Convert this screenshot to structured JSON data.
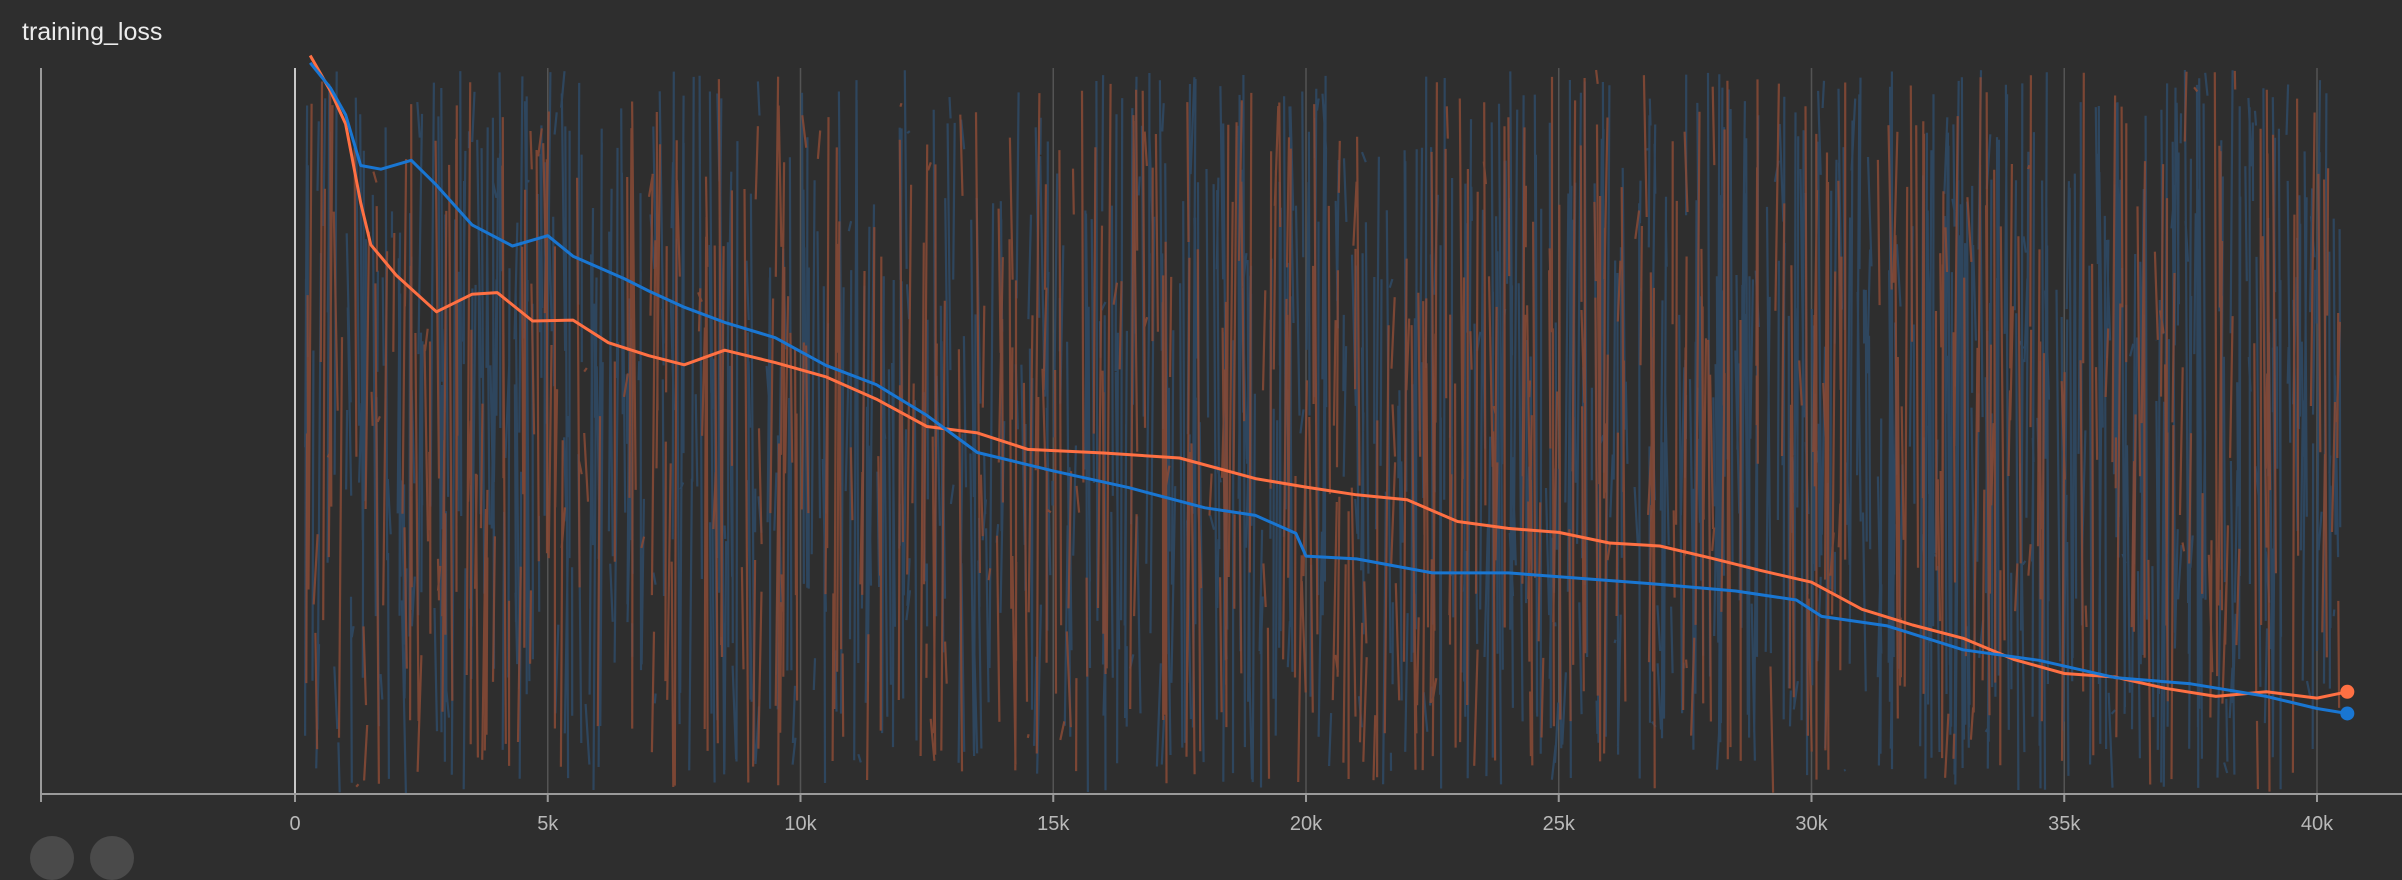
{
  "card": {
    "title": "training_loss"
  },
  "colors": {
    "background": "#2e2e2e",
    "axis": "#9a9a9a",
    "grid": "#545454",
    "series_orange": "#ff7043",
    "series_blue": "#1976d2",
    "raw_orange": "#8a4a35",
    "raw_blue": "#2e4a66"
  },
  "chart_data": {
    "type": "line",
    "title": "training_loss",
    "xlabel": "",
    "ylabel": "",
    "xlim": [
      0,
      41500
    ],
    "ylim": [
      0,
      1
    ],
    "x_ticks": [
      0,
      5000,
      10000,
      15000,
      20000,
      25000,
      30000,
      35000,
      40000
    ],
    "x_tick_labels": [
      "0",
      "5k",
      "10k",
      "15k",
      "20k",
      "25k",
      "30k",
      "35k",
      "40k"
    ],
    "y_ticks_shown": false,
    "grid": "vertical",
    "series": [
      {
        "color": "#ff7043",
        "smoothed": [
          [
            300,
            1.02
          ],
          [
            700,
            0.97
          ],
          [
            1000,
            0.93
          ],
          [
            1300,
            0.82
          ],
          [
            1500,
            0.76
          ],
          [
            2000,
            0.72
          ],
          [
            2800,
            0.67
          ],
          [
            3500,
            0.69
          ],
          [
            4000,
            0.69
          ],
          [
            4700,
            0.65
          ],
          [
            5500,
            0.66
          ],
          [
            6200,
            0.62
          ],
          [
            7000,
            0.6
          ],
          [
            7700,
            0.59
          ],
          [
            8500,
            0.61
          ],
          [
            9500,
            0.59
          ],
          [
            10500,
            0.58
          ],
          [
            11500,
            0.55
          ],
          [
            12500,
            0.51
          ],
          [
            13500,
            0.5
          ],
          [
            14500,
            0.48
          ],
          [
            16000,
            0.47
          ],
          [
            17500,
            0.46
          ],
          [
            19000,
            0.44
          ],
          [
            20000,
            0.42
          ],
          [
            21000,
            0.41
          ],
          [
            22000,
            0.4
          ],
          [
            23000,
            0.38
          ],
          [
            24000,
            0.36
          ],
          [
            25000,
            0.36
          ],
          [
            26000,
            0.35
          ],
          [
            27000,
            0.34
          ],
          [
            28000,
            0.33
          ],
          [
            29000,
            0.31
          ],
          [
            30000,
            0.29
          ],
          [
            31000,
            0.25
          ],
          [
            32000,
            0.23
          ],
          [
            33000,
            0.21
          ],
          [
            34000,
            0.18
          ],
          [
            35000,
            0.17
          ],
          [
            36000,
            0.16
          ],
          [
            37000,
            0.14
          ],
          [
            38000,
            0.13
          ],
          [
            39000,
            0.135
          ],
          [
            40000,
            0.135
          ],
          [
            40600,
            0.14
          ]
        ]
      },
      {
        "color": "#1976d2",
        "smoothed": [
          [
            300,
            1.01
          ],
          [
            700,
            0.98
          ],
          [
            1000,
            0.94
          ],
          [
            1300,
            0.87
          ],
          [
            1700,
            0.86
          ],
          [
            2300,
            0.87
          ],
          [
            2800,
            0.84
          ],
          [
            3500,
            0.79
          ],
          [
            4300,
            0.76
          ],
          [
            5000,
            0.77
          ],
          [
            5500,
            0.74
          ],
          [
            6500,
            0.71
          ],
          [
            7000,
            0.7
          ],
          [
            7700,
            0.67
          ],
          [
            8500,
            0.65
          ],
          [
            9500,
            0.63
          ],
          [
            10500,
            0.59
          ],
          [
            11500,
            0.56
          ],
          [
            12500,
            0.52
          ],
          [
            13500,
            0.47
          ],
          [
            15000,
            0.44
          ],
          [
            16500,
            0.42
          ],
          [
            18000,
            0.4
          ],
          [
            19000,
            0.38
          ],
          [
            19800,
            0.36
          ],
          [
            20000,
            0.33
          ],
          [
            21000,
            0.32
          ],
          [
            22500,
            0.31
          ],
          [
            24000,
            0.3
          ],
          [
            25500,
            0.3
          ],
          [
            27000,
            0.29
          ],
          [
            28500,
            0.28
          ],
          [
            29700,
            0.27
          ],
          [
            30200,
            0.24
          ],
          [
            31500,
            0.23
          ],
          [
            33000,
            0.2
          ],
          [
            34500,
            0.18
          ],
          [
            36000,
            0.165
          ],
          [
            37500,
            0.15
          ],
          [
            39000,
            0.13
          ],
          [
            40000,
            0.115
          ],
          [
            40600,
            0.11
          ]
        ]
      }
    ]
  }
}
